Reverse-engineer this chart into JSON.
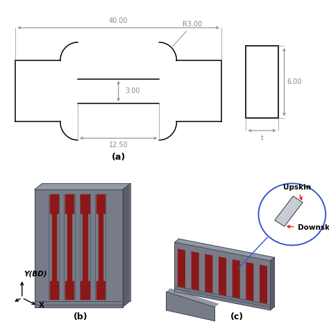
{
  "bg_color": "#ffffff",
  "dim_color": "#8a8a8a",
  "line_color": "#000000",
  "label_a": "(a)",
  "label_b": "(b)",
  "label_c": "(c)",
  "dim_40": "40.00",
  "dim_3_width": "3.00",
  "dim_12_5": "12.50",
  "dim_R3": "R3.00",
  "dim_6": "6.00",
  "dim_t": "t",
  "label_upskin": "Upskin",
  "label_downskin": "Downskin",
  "label_Y_BD": "Y(BD)",
  "label_X": "X",
  "plate_face": "#787b88",
  "plate_top": "#9499a8",
  "plate_right": "#5a5d6a",
  "plate_dark": "#4a4d5a",
  "spec_red": "#8b1818",
  "spec_slot": "#3a3d4a",
  "circle_color": "#3355cc"
}
